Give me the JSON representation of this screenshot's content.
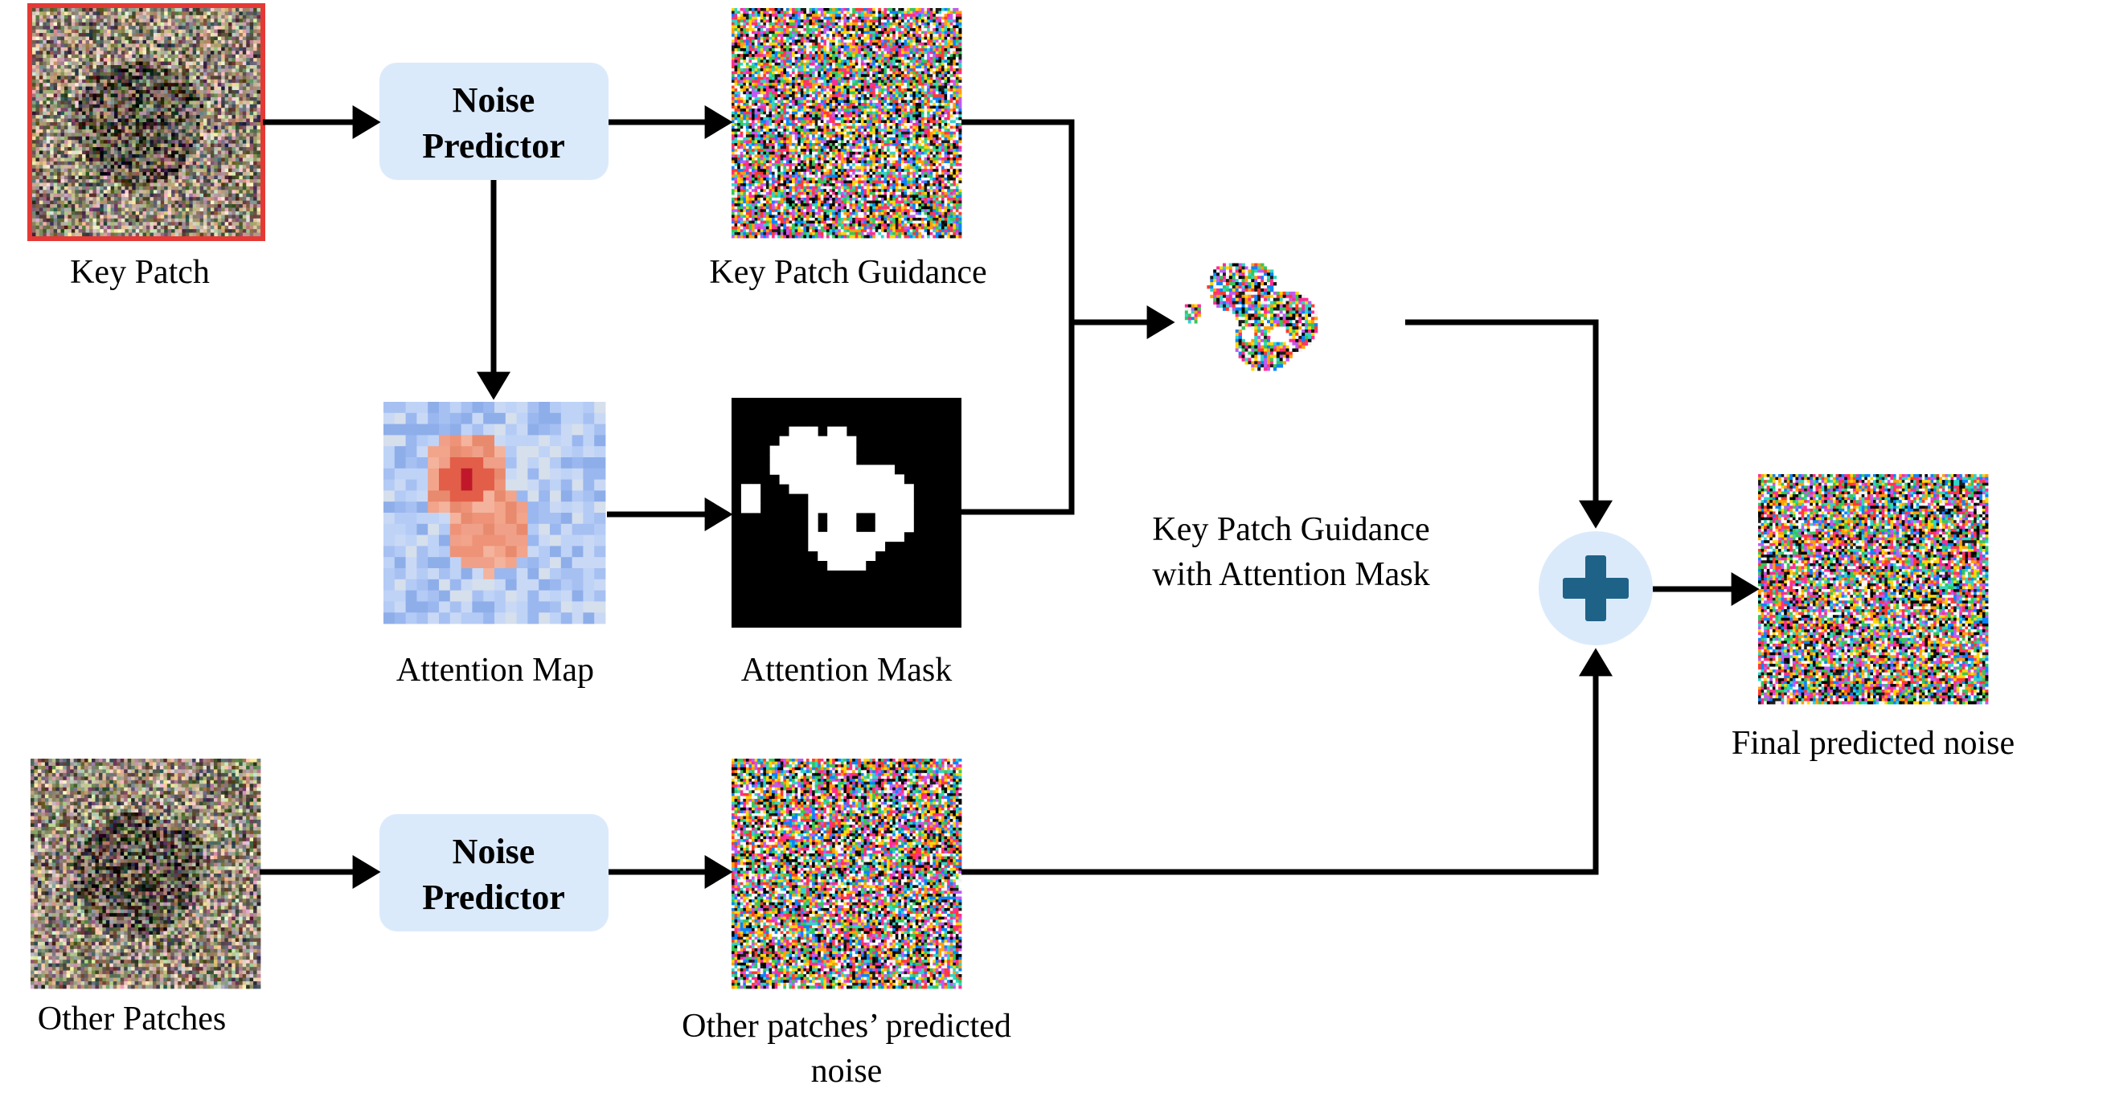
{
  "nodes": {
    "key_patch": {
      "label": "Key Patch"
    },
    "noise_predictor_top": {
      "line1": "Noise",
      "line2": "Predictor"
    },
    "key_patch_guidance": {
      "label": "Key Patch Guidance"
    },
    "attention_map": {
      "label": "Attention Map"
    },
    "attention_mask": {
      "label": "Attention Mask"
    },
    "masked_guidance": {
      "line1": "Key Patch Guidance",
      "line2": "with Attention Mask"
    },
    "other_patches": {
      "label": "Other Patches"
    },
    "noise_predictor_bottom": {
      "line1": "Noise",
      "line2": "Predictor"
    },
    "other_noise": {
      "line1": "Other patches’ predicted",
      "line2": "noise"
    },
    "final_noise": {
      "label": "Final predicted noise"
    }
  },
  "colors": {
    "predictor_box": "#dbeafb",
    "plus_circle": "#dbeafb",
    "plus_sign": "#1f6287",
    "key_patch_border": "#e53935",
    "arrow": "#000000"
  },
  "icons": {
    "sum": "plus-icon"
  }
}
